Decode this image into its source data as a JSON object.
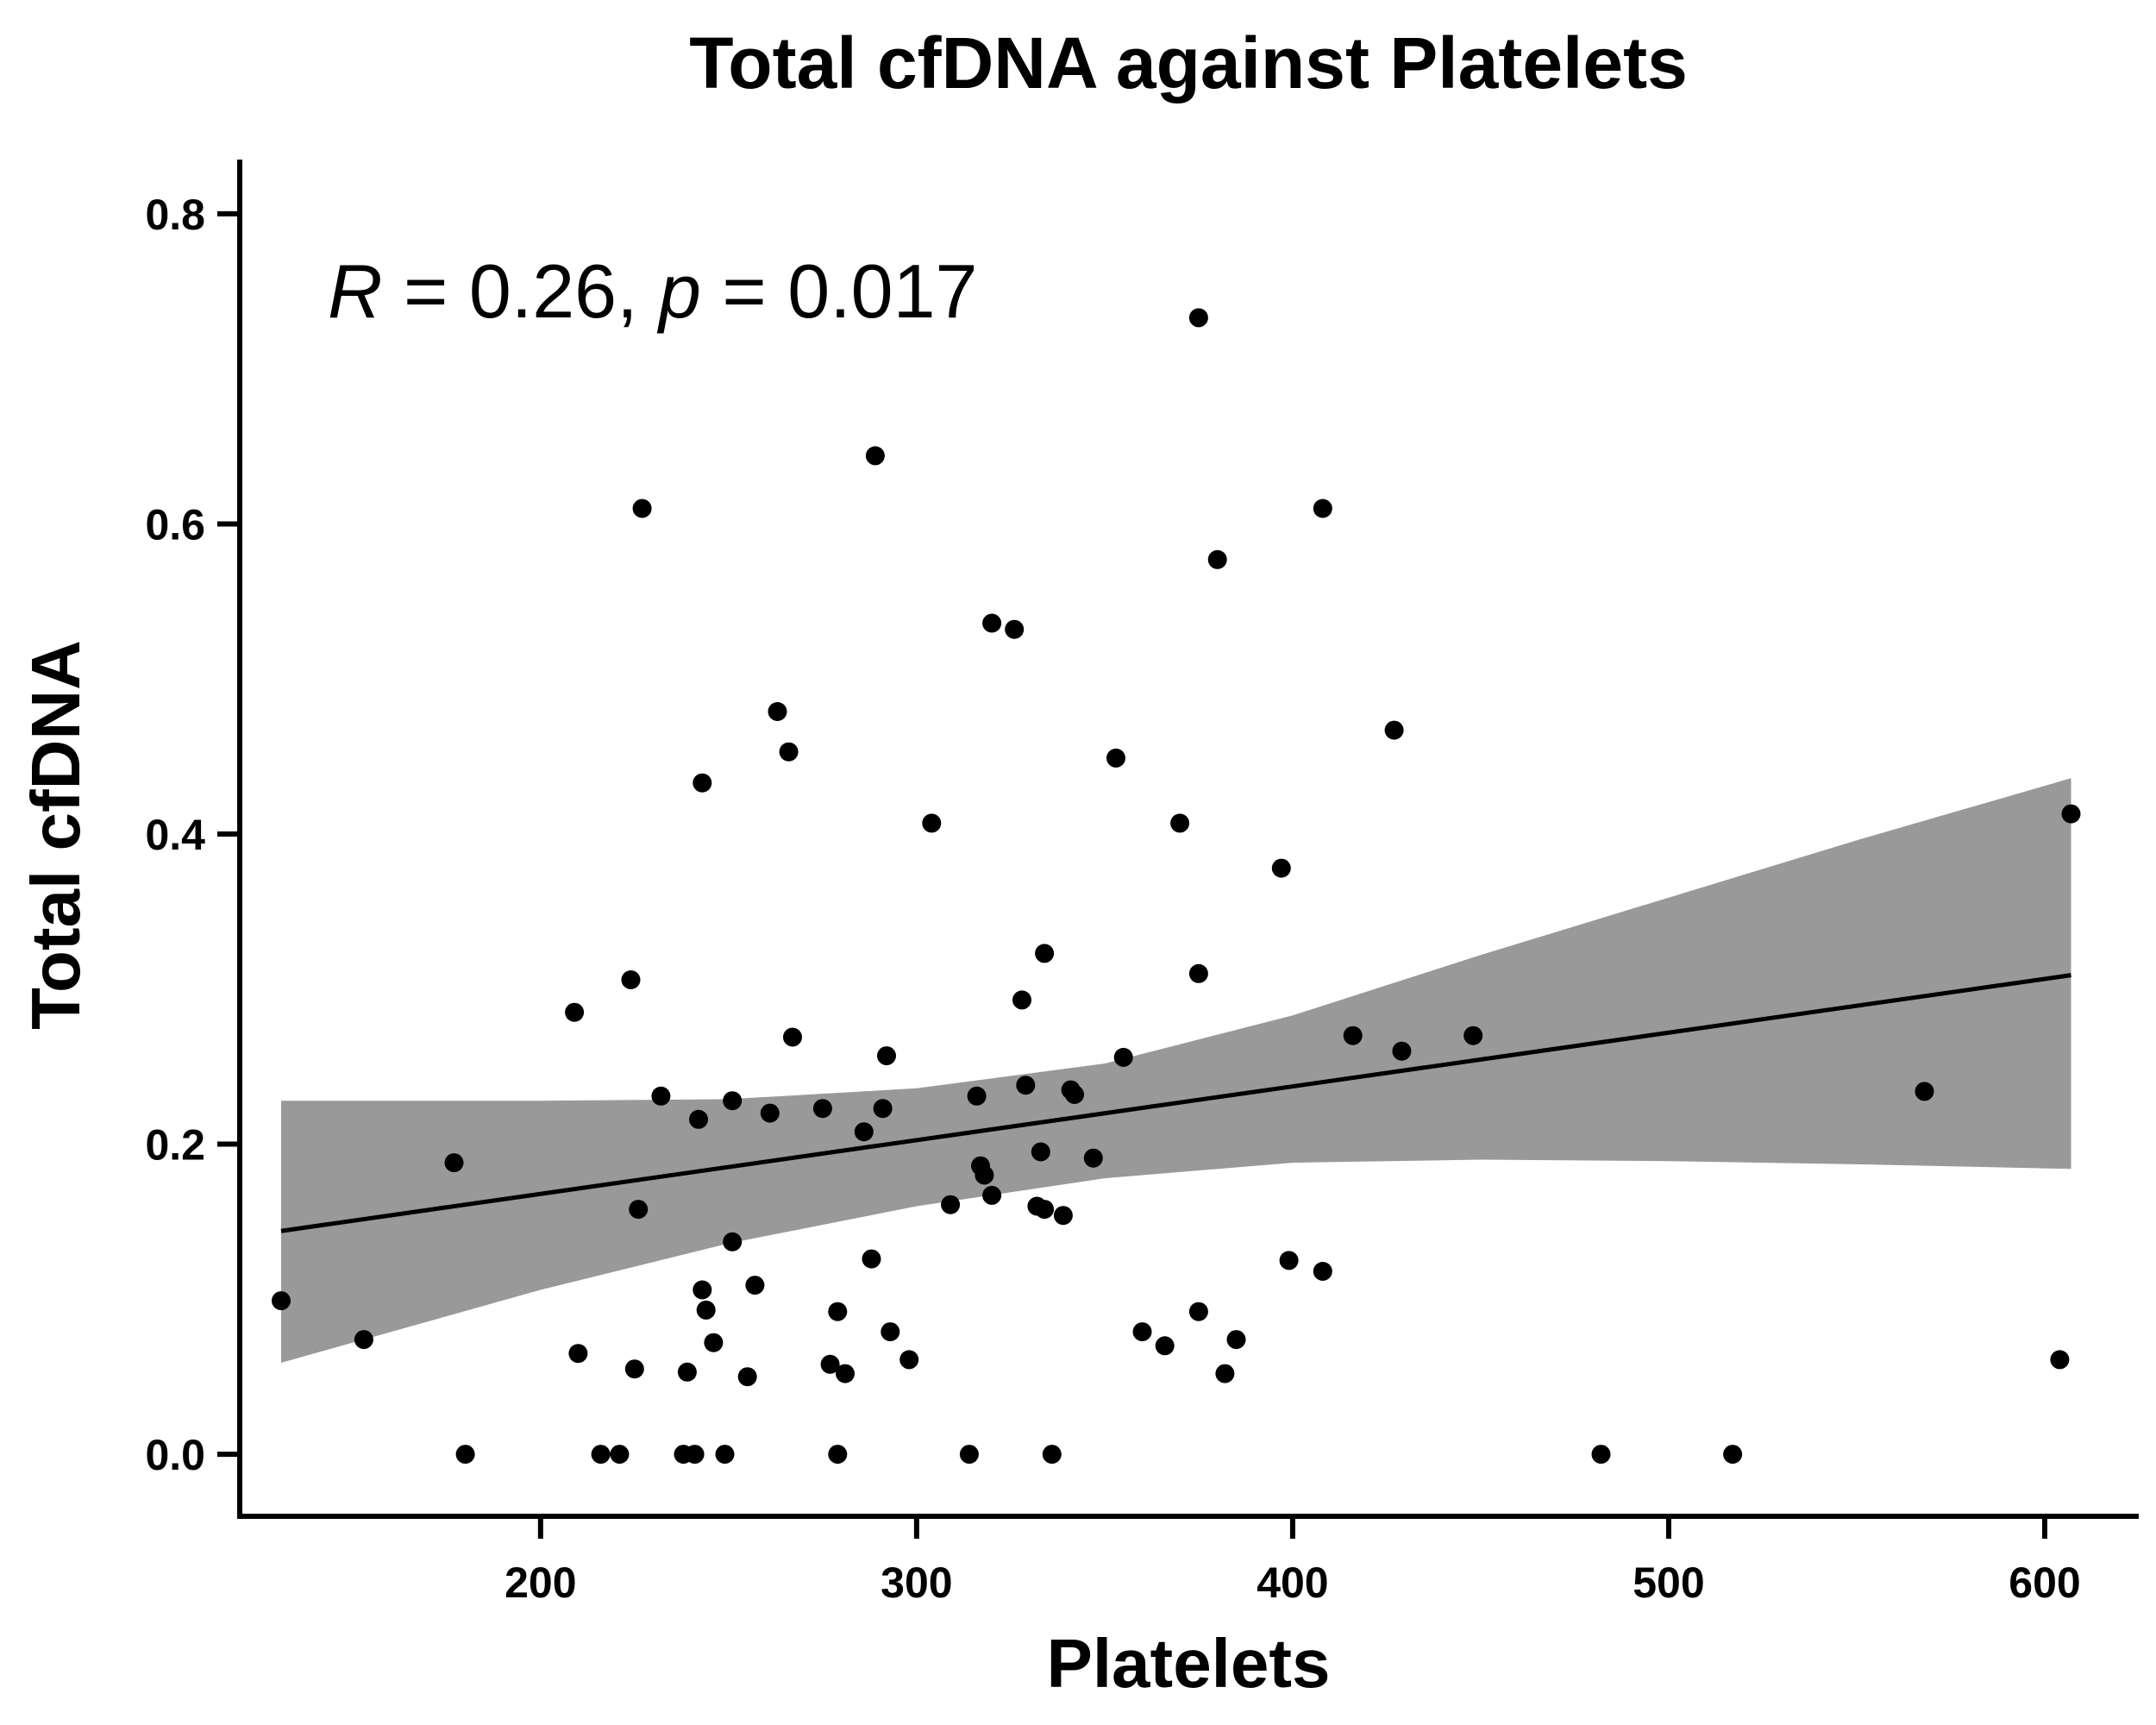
{
  "chart_data": {
    "type": "scatter",
    "title": "Total cfDNA against Platelets",
    "xlabel": "Platelets",
    "ylabel": "Total cfDNA",
    "xlim": [
      120,
      625
    ],
    "ylim": [
      -0.04,
      0.835
    ],
    "xticks": [
      200,
      300,
      400,
      500,
      600
    ],
    "yticks": [
      0.0,
      0.2,
      0.4,
      0.6,
      0.8
    ],
    "xtick_labels": [
      "200",
      "300",
      "400",
      "500",
      "600"
    ],
    "ytick_labels": [
      "0.0",
      "0.2",
      "0.4",
      "0.6",
      "0.8"
    ],
    "grid": false,
    "annotation": {
      "r_symbol": "R",
      "r_text": " = 0.26, ",
      "p_symbol": "p",
      "p_text": " = 0.017"
    },
    "fit_line": {
      "x": [
        131,
        607
      ],
      "y": [
        0.144,
        0.309
      ]
    },
    "confidence_band": {
      "x": [
        131,
        200,
        250,
        300,
        350,
        400,
        450,
        500,
        550,
        607
      ],
      "upper": [
        0.228,
        0.228,
        0.229,
        0.236,
        0.252,
        0.283,
        0.322,
        0.359,
        0.396,
        0.436
      ],
      "lower": [
        0.059,
        0.106,
        0.136,
        0.16,
        0.178,
        0.188,
        0.19,
        0.189,
        0.187,
        0.184
      ]
    },
    "colors": {
      "points": "#000000",
      "band": "#999999",
      "line": "#000000",
      "axis": "#000000"
    },
    "points": [
      {
        "x": 131,
        "y": 0.099
      },
      {
        "x": 153,
        "y": 0.074
      },
      {
        "x": 177,
        "y": 0.188
      },
      {
        "x": 180,
        "y": 0.0
      },
      {
        "x": 209,
        "y": 0.285
      },
      {
        "x": 210,
        "y": 0.065
      },
      {
        "x": 216,
        "y": 0.0
      },
      {
        "x": 221,
        "y": 0.0
      },
      {
        "x": 224,
        "y": 0.306
      },
      {
        "x": 225,
        "y": 0.055
      },
      {
        "x": 226,
        "y": 0.158
      },
      {
        "x": 227,
        "y": 0.61
      },
      {
        "x": 232,
        "y": 0.231
      },
      {
        "x": 238,
        "y": 0.0
      },
      {
        "x": 239,
        "y": 0.053
      },
      {
        "x": 241,
        "y": 0.0
      },
      {
        "x": 242,
        "y": 0.216
      },
      {
        "x": 243,
        "y": 0.106
      },
      {
        "x": 243,
        "y": 0.433
      },
      {
        "x": 244,
        "y": 0.093
      },
      {
        "x": 246,
        "y": 0.072
      },
      {
        "x": 249,
        "y": 0.0
      },
      {
        "x": 251,
        "y": 0.228
      },
      {
        "x": 251,
        "y": 0.137
      },
      {
        "x": 255,
        "y": 0.05
      },
      {
        "x": 257,
        "y": 0.109
      },
      {
        "x": 261,
        "y": 0.22
      },
      {
        "x": 263,
        "y": 0.479
      },
      {
        "x": 266,
        "y": 0.453
      },
      {
        "x": 267,
        "y": 0.269
      },
      {
        "x": 275,
        "y": 0.223
      },
      {
        "x": 277,
        "y": 0.058
      },
      {
        "x": 279,
        "y": 0.092
      },
      {
        "x": 279,
        "y": 0.0
      },
      {
        "x": 281,
        "y": 0.052
      },
      {
        "x": 286,
        "y": 0.208
      },
      {
        "x": 288,
        "y": 0.126
      },
      {
        "x": 289,
        "y": 0.644
      },
      {
        "x": 291,
        "y": 0.223
      },
      {
        "x": 292,
        "y": 0.257
      },
      {
        "x": 293,
        "y": 0.079
      },
      {
        "x": 298,
        "y": 0.061
      },
      {
        "x": 304,
        "y": 0.407
      },
      {
        "x": 309,
        "y": 0.161
      },
      {
        "x": 314,
        "y": 0.0
      },
      {
        "x": 316,
        "y": 0.231
      },
      {
        "x": 317,
        "y": 0.186
      },
      {
        "x": 318,
        "y": 0.18
      },
      {
        "x": 320,
        "y": 0.536
      },
      {
        "x": 320,
        "y": 0.167
      },
      {
        "x": 326,
        "y": 0.532
      },
      {
        "x": 328,
        "y": 0.293
      },
      {
        "x": 329,
        "y": 0.238
      },
      {
        "x": 332,
        "y": 0.16
      },
      {
        "x": 333,
        "y": 0.195
      },
      {
        "x": 334,
        "y": 0.323
      },
      {
        "x": 334,
        "y": 0.158
      },
      {
        "x": 336,
        "y": 0.0
      },
      {
        "x": 339,
        "y": 0.154
      },
      {
        "x": 341,
        "y": 0.235
      },
      {
        "x": 342,
        "y": 0.232
      },
      {
        "x": 347,
        "y": 0.191
      },
      {
        "x": 353,
        "y": 0.449
      },
      {
        "x": 355,
        "y": 0.256
      },
      {
        "x": 360,
        "y": 0.079
      },
      {
        "x": 366,
        "y": 0.07
      },
      {
        "x": 370,
        "y": 0.407
      },
      {
        "x": 375,
        "y": 0.733
      },
      {
        "x": 375,
        "y": 0.31
      },
      {
        "x": 375,
        "y": 0.092
      },
      {
        "x": 380,
        "y": 0.577
      },
      {
        "x": 382,
        "y": 0.052
      },
      {
        "x": 385,
        "y": 0.074
      },
      {
        "x": 397,
        "y": 0.378
      },
      {
        "x": 399,
        "y": 0.125
      },
      {
        "x": 408,
        "y": 0.61
      },
      {
        "x": 408,
        "y": 0.118
      },
      {
        "x": 416,
        "y": 0.27
      },
      {
        "x": 427,
        "y": 0.467
      },
      {
        "x": 429,
        "y": 0.26
      },
      {
        "x": 448,
        "y": 0.27
      },
      {
        "x": 482,
        "y": 0.0
      },
      {
        "x": 517,
        "y": 0.0
      },
      {
        "x": 568,
        "y": 0.234
      },
      {
        "x": 604,
        "y": 0.061
      },
      {
        "x": 607,
        "y": 0.413
      }
    ]
  }
}
